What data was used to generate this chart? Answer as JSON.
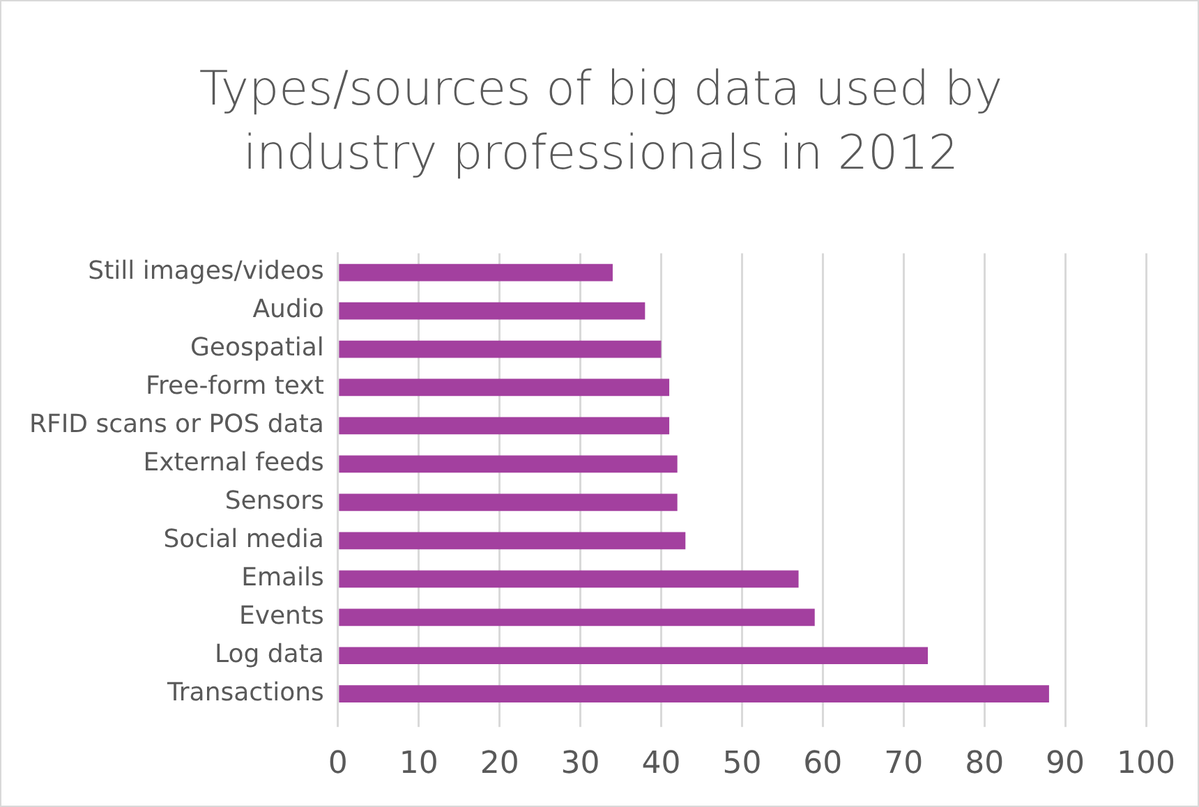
{
  "chart_data": {
    "type": "bar",
    "orientation": "horizontal",
    "title": "Types/sources of big data used by industry professionals in 2012",
    "categories": [
      "Still images/videos",
      "Audio",
      "Geospatial",
      "Free-form text",
      "RFID scans or POS data",
      "External feeds",
      "Sensors",
      "Social media",
      "Emails",
      "Events",
      "Log data",
      "Transactions"
    ],
    "values": [
      34,
      38,
      40,
      41,
      41,
      42,
      42,
      43,
      57,
      59,
      73,
      88
    ],
    "color": "#a3409f",
    "xlim": [
      0,
      100
    ],
    "xticks": [
      0,
      10,
      20,
      30,
      40,
      50,
      60,
      70,
      80,
      90,
      100
    ],
    "grid": "x",
    "legend": false
  }
}
